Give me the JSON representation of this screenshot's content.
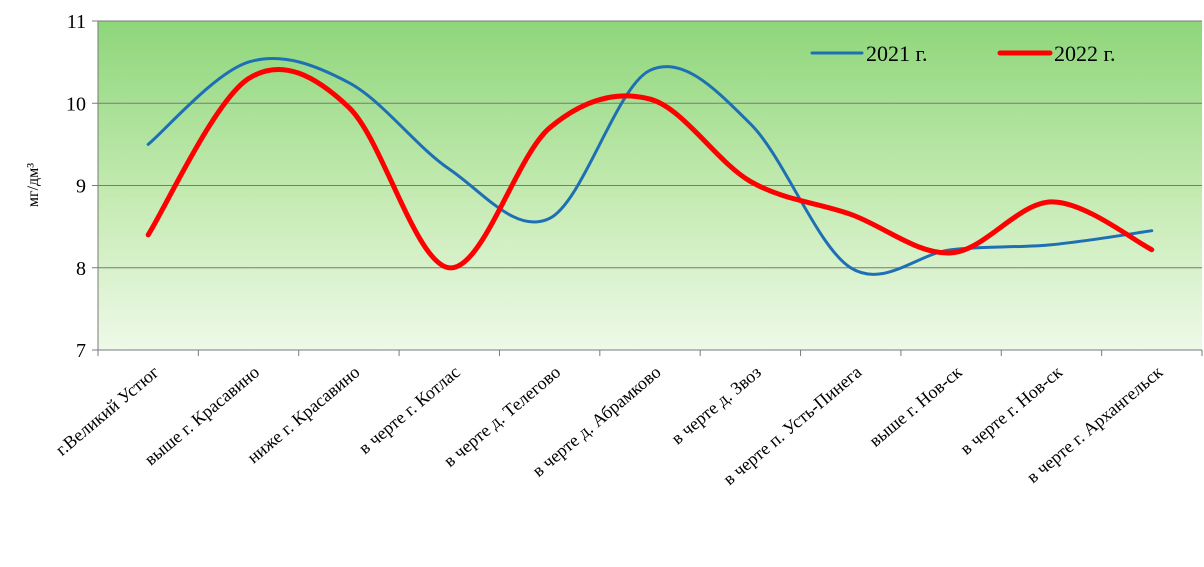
{
  "chart_data": {
    "type": "line",
    "ylabel": "мг/дм³",
    "ylim": [
      7,
      11
    ],
    "yticks": [
      7,
      8,
      9,
      10,
      11
    ],
    "grid": true,
    "legend_position": "top-right",
    "categories": [
      "г.Великий Устюг",
      "выше г. Красавино",
      "ниже г. Красавино",
      "в черте г. Котлас",
      "в черте д. Телегово",
      "в черте д. Абрамково",
      "в черте д. Звоз",
      "в черте п. Усть-Пинега",
      "выше г. Нов-ск",
      "в черте г. Нов-ск",
      "в черте г. Архангельск"
    ],
    "series": [
      {
        "name": "2021 г.",
        "color": "#1f6fb5",
        "values": [
          9.5,
          10.5,
          10.25,
          9.2,
          8.6,
          10.4,
          9.75,
          8.0,
          8.22,
          8.28,
          8.45
        ]
      },
      {
        "name": "2022 г.",
        "color": "#ff0000",
        "values": [
          8.4,
          10.3,
          9.95,
          8.0,
          9.7,
          10.05,
          9.05,
          8.65,
          8.18,
          8.8,
          8.22
        ]
      }
    ]
  }
}
